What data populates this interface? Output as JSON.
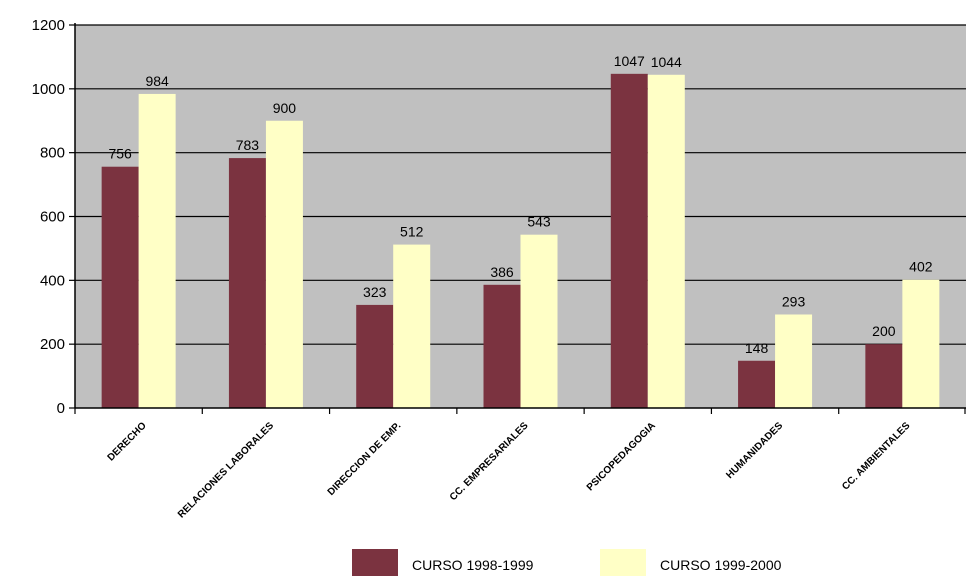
{
  "chart_data": {
    "type": "bar",
    "categories": [
      "DERECHO",
      "RELACIONES LABORALES",
      "DIRECCION DE EMP.",
      "CC. EMPRESARIALES",
      "PSICOPEDAGOGIA",
      "HUMANIDADES",
      "CC. AMBIENTALES"
    ],
    "series": [
      {
        "name": "CURSO 1998-1999",
        "values": [
          756,
          783,
          323,
          386,
          1047,
          148,
          200
        ],
        "color": "#7b3340"
      },
      {
        "name": "CURSO 1999-2000",
        "values": [
          984,
          900,
          512,
          543,
          1044,
          293,
          402
        ],
        "color": "#ffffc6"
      }
    ],
    "data_labels": [
      [
        "756",
        "783",
        "323",
        "386",
        "1047",
        "148",
        "200"
      ],
      [
        "984",
        "900",
        "512",
        "543",
        "1044",
        "293",
        "402"
      ]
    ],
    "ylim": [
      0,
      1200
    ],
    "yticks": [
      "0",
      "200",
      "400",
      "600",
      "800",
      "1000",
      "1200"
    ],
    "grid": true,
    "plot_background": "#c0c0c0",
    "legend_position": "bottom"
  }
}
